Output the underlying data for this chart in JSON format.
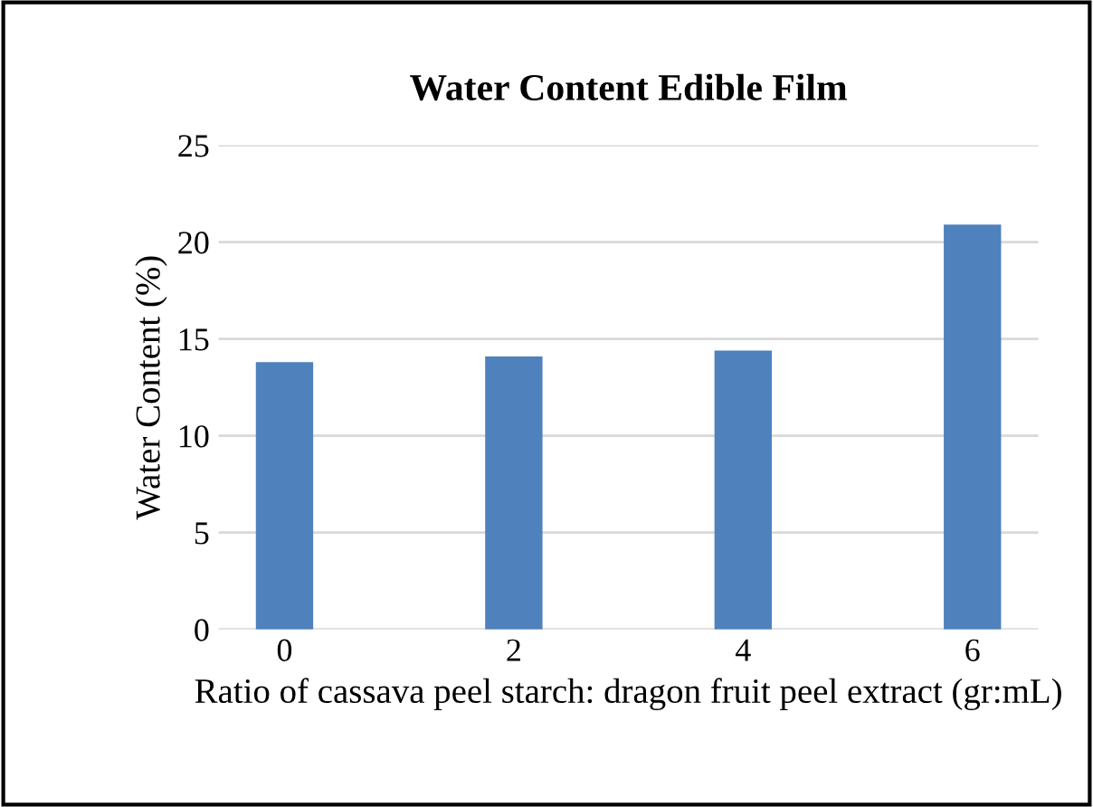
{
  "chart_data": {
    "type": "bar",
    "title": "Water Content Edible Film",
    "xlabel": "Ratio of cassava peel starch: dragon fruit peel extract (gr:mL)",
    "ylabel": "Water Content (%)",
    "categories": [
      "0",
      "2",
      "4",
      "6"
    ],
    "values": [
      13.8,
      14.1,
      14.4,
      20.9
    ],
    "color": "#4f81bd",
    "ylim": [
      0,
      25
    ],
    "yticks": [
      0,
      5,
      10,
      15,
      20,
      25
    ],
    "grid": "y"
  }
}
